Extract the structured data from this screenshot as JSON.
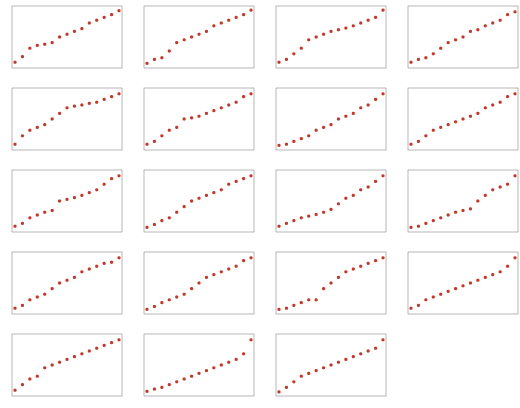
{
  "chart_data": [
    {
      "type": "scatter",
      "color": "#c0392b",
      "xlim": [
        0,
        14
      ],
      "ylim": [
        0,
        10
      ],
      "x": [
        0,
        1,
        2,
        3,
        4,
        5,
        6,
        7,
        8,
        9,
        10,
        11,
        12,
        13,
        14
      ],
      "values": [
        0.5,
        1.5,
        3,
        3.5,
        3.7,
        4,
        5,
        5.5,
        6,
        6.5,
        7.5,
        8,
        8.5,
        9,
        9.7
      ]
    },
    {
      "type": "scatter",
      "color": "#c0392b",
      "xlim": [
        0,
        14
      ],
      "ylim": [
        0,
        10
      ],
      "x": [
        0,
        1,
        2,
        3,
        4,
        5,
        6,
        7,
        8,
        9,
        10,
        11,
        12,
        13,
        14
      ],
      "values": [
        0.3,
        1,
        1.3,
        2.5,
        4,
        4.5,
        5,
        5.5,
        6,
        7,
        7.5,
        8,
        8.5,
        9,
        9.8
      ]
    },
    {
      "type": "scatter",
      "color": "#c0392b",
      "xlim": [
        0,
        14
      ],
      "ylim": [
        0,
        10
      ],
      "x": [
        0,
        1,
        2,
        3,
        4,
        5,
        6,
        7,
        8,
        9,
        10,
        11,
        12,
        13,
        14
      ],
      "values": [
        0.5,
        1,
        2,
        3,
        4.5,
        5,
        5.5,
        6,
        6.3,
        6.6,
        7,
        7.5,
        8,
        8.5,
        9.8
      ]
    },
    {
      "type": "scatter",
      "color": "#c0392b",
      "xlim": [
        0,
        14
      ],
      "ylim": [
        0,
        10
      ],
      "x": [
        0,
        1,
        2,
        3,
        4,
        5,
        6,
        7,
        8,
        9,
        10,
        11,
        12,
        13,
        14
      ],
      "values": [
        0.5,
        1,
        1.3,
        2,
        3,
        4,
        4.5,
        5,
        6,
        6.3,
        7,
        7.5,
        8,
        9,
        9.5
      ]
    },
    {
      "type": "scatter",
      "color": "#c0392b",
      "xlim": [
        0,
        14
      ],
      "ylim": [
        0,
        10
      ],
      "x": [
        0,
        1,
        2,
        3,
        4,
        5,
        6,
        7,
        8,
        9,
        10,
        11,
        12,
        13,
        14
      ],
      "values": [
        0.5,
        2,
        3,
        3.5,
        4,
        5,
        6,
        7,
        7.3,
        7.5,
        7.8,
        8,
        8.5,
        9,
        9.5
      ]
    },
    {
      "type": "scatter",
      "color": "#c0392b",
      "xlim": [
        0,
        14
      ],
      "ylim": [
        0,
        10
      ],
      "x": [
        0,
        1,
        2,
        3,
        4,
        5,
        6,
        7,
        8,
        9,
        10,
        11,
        12,
        13,
        14
      ],
      "values": [
        0.5,
        1,
        2,
        3,
        3.5,
        5,
        5.2,
        5.5,
        6,
        6.5,
        7,
        7.5,
        8,
        9,
        9.5
      ]
    },
    {
      "type": "scatter",
      "color": "#c0392b",
      "xlim": [
        0,
        14
      ],
      "ylim": [
        0,
        10
      ],
      "x": [
        0,
        1,
        2,
        3,
        4,
        5,
        6,
        7,
        8,
        9,
        10,
        11,
        12,
        13,
        14
      ],
      "values": [
        0.3,
        0.5,
        1,
        1.5,
        2,
        3,
        3.5,
        4,
        5,
        5.5,
        6,
        7,
        7.5,
        8.5,
        9.5
      ]
    },
    {
      "type": "scatter",
      "color": "#c0392b",
      "xlim": [
        0,
        14
      ],
      "ylim": [
        0,
        10
      ],
      "x": [
        0,
        1,
        2,
        3,
        4,
        5,
        6,
        7,
        8,
        9,
        10,
        11,
        12,
        13,
        14
      ],
      "values": [
        0.5,
        1,
        2,
        3,
        3.5,
        4,
        4.5,
        5,
        5.5,
        6,
        7,
        7.5,
        8,
        9,
        9.5
      ]
    },
    {
      "type": "scatter",
      "color": "#c0392b",
      "xlim": [
        0,
        14
      ],
      "ylim": [
        0,
        10
      ],
      "x": [
        0,
        1,
        2,
        3,
        4,
        5,
        6,
        7,
        8,
        9,
        10,
        11,
        12,
        13,
        14
      ],
      "values": [
        0.5,
        1,
        2,
        2.5,
        3,
        3.3,
        5,
        5.3,
        5.6,
        6,
        6.5,
        7,
        8,
        9,
        9.5
      ]
    },
    {
      "type": "scatter",
      "color": "#c0392b",
      "xlim": [
        0,
        14
      ],
      "ylim": [
        0,
        10
      ],
      "x": [
        0,
        1,
        2,
        3,
        4,
        5,
        6,
        7,
        8,
        9,
        10,
        11,
        12,
        13,
        14
      ],
      "values": [
        0.3,
        0.8,
        1.5,
        2,
        3,
        4,
        5,
        5.5,
        6,
        6.5,
        7,
        8,
        8.5,
        9,
        9.5
      ]
    },
    {
      "type": "scatter",
      "color": "#c0392b",
      "xlim": [
        0,
        14
      ],
      "ylim": [
        0,
        10
      ],
      "x": [
        0,
        1,
        2,
        3,
        4,
        5,
        6,
        7,
        8,
        9,
        10,
        11,
        12,
        13,
        14
      ],
      "values": [
        0.5,
        1,
        1.5,
        2,
        2.3,
        2.6,
        3,
        3.5,
        4.5,
        5.5,
        6,
        7,
        7.5,
        8.5,
        9.5
      ]
    },
    {
      "type": "scatter",
      "color": "#c0392b",
      "xlim": [
        0,
        14
      ],
      "ylim": [
        0,
        10
      ],
      "x": [
        0,
        1,
        2,
        3,
        4,
        5,
        6,
        7,
        8,
        9,
        10,
        11,
        12,
        13,
        14
      ],
      "values": [
        0.3,
        0.5,
        1,
        1.5,
        2,
        2.5,
        3,
        3.3,
        3.6,
        5,
        6,
        7,
        7.5,
        8,
        9.5
      ]
    },
    {
      "type": "scatter",
      "color": "#c0392b",
      "xlim": [
        0,
        14
      ],
      "ylim": [
        0,
        10
      ],
      "x": [
        0,
        1,
        2,
        3,
        4,
        5,
        6,
        7,
        8,
        9,
        10,
        11,
        12,
        13,
        14
      ],
      "values": [
        0.5,
        1,
        2,
        2.5,
        3,
        4,
        5,
        5.5,
        6,
        7,
        7.5,
        8,
        8.5,
        8.7,
        9.5
      ]
    },
    {
      "type": "scatter",
      "color": "#c0392b",
      "xlim": [
        0,
        14
      ],
      "ylim": [
        0,
        10
      ],
      "x": [
        0,
        1,
        2,
        3,
        4,
        5,
        6,
        7,
        8,
        9,
        10,
        11,
        12,
        13,
        14
      ],
      "values": [
        0.3,
        0.8,
        1.5,
        2,
        2.5,
        3,
        4,
        5,
        6,
        6.5,
        7,
        7.5,
        8,
        9,
        9.5
      ]
    },
    {
      "type": "scatter",
      "color": "#c0392b",
      "xlim": [
        0,
        14
      ],
      "ylim": [
        0,
        10
      ],
      "x": [
        0,
        1,
        2,
        3,
        4,
        5,
        6,
        7,
        8,
        9,
        10,
        11,
        12,
        13,
        14
      ],
      "values": [
        0.3,
        0.5,
        1,
        1.5,
        2,
        2,
        4,
        5,
        6,
        7,
        7.5,
        8,
        8.5,
        9,
        9.5
      ]
    },
    {
      "type": "scatter",
      "color": "#c0392b",
      "xlim": [
        0,
        14
      ],
      "ylim": [
        0,
        10
      ],
      "x": [
        0,
        1,
        2,
        3,
        4,
        5,
        6,
        7,
        8,
        9,
        10,
        11,
        12,
        13,
        14
      ],
      "values": [
        0.5,
        1,
        2,
        2.5,
        3,
        3.5,
        4,
        4.5,
        5,
        5.5,
        6,
        6.5,
        7,
        8,
        9.5
      ]
    },
    {
      "type": "scatter",
      "color": "#c0392b",
      "xlim": [
        0,
        14
      ],
      "ylim": [
        0,
        10
      ],
      "x": [
        0,
        1,
        2,
        3,
        4,
        5,
        6,
        7,
        8,
        9,
        10,
        11,
        12,
        13,
        14
      ],
      "values": [
        0.5,
        1.5,
        2.5,
        3,
        4.5,
        5,
        5.5,
        6,
        6.5,
        7,
        7.5,
        8,
        8.5,
        9,
        9.5
      ]
    },
    {
      "type": "scatter",
      "color": "#c0392b",
      "xlim": [
        0,
        14
      ],
      "ylim": [
        0,
        10
      ],
      "x": [
        0,
        1,
        2,
        3,
        4,
        5,
        6,
        7,
        8,
        9,
        10,
        11,
        12,
        13,
        14
      ],
      "values": [
        0.3,
        0.7,
        1,
        1.5,
        2,
        2.5,
        3,
        3.5,
        4,
        4.5,
        5,
        5.5,
        6,
        7,
        9.5
      ]
    },
    {
      "type": "scatter",
      "color": "#c0392b",
      "xlim": [
        0,
        14
      ],
      "ylim": [
        0,
        10
      ],
      "x": [
        0,
        1,
        2,
        3,
        4,
        5,
        6,
        7,
        8,
        9,
        10,
        11,
        12,
        13,
        14
      ],
      "values": [
        0.2,
        1,
        2,
        3,
        3.5,
        4,
        4.5,
        5,
        5.5,
        6,
        6.5,
        7,
        7.5,
        8,
        9.5
      ]
    }
  ]
}
